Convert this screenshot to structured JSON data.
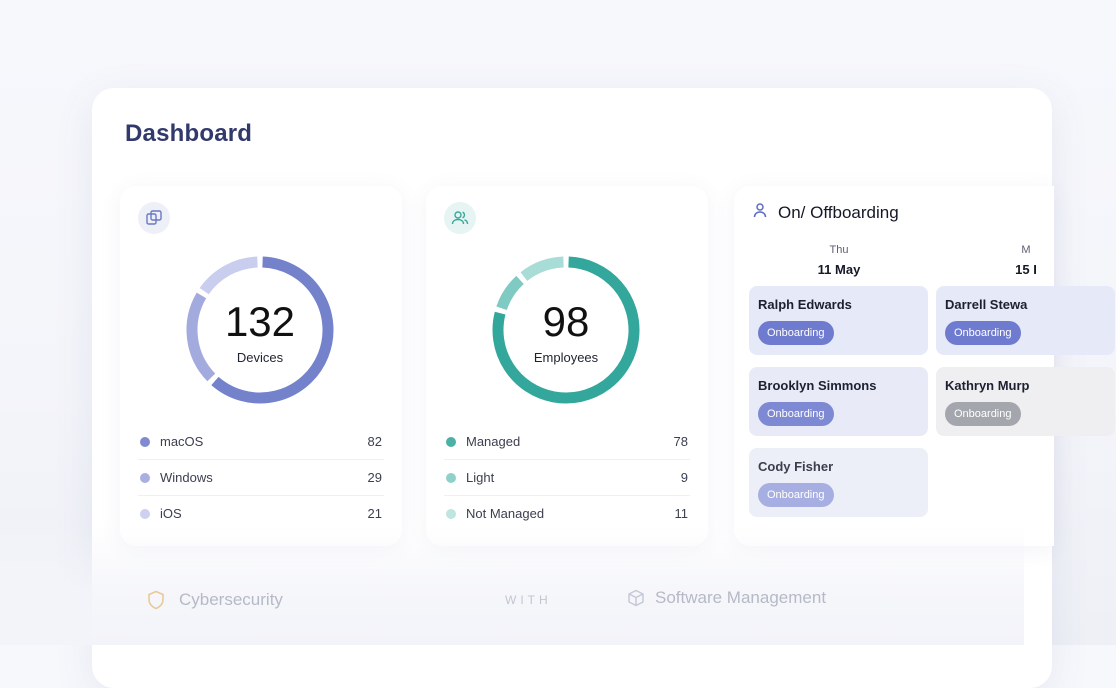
{
  "dashboard": {
    "title": "Dashboard"
  },
  "devices": {
    "icon": "devices-icon",
    "total": "132",
    "label": "Devices",
    "segments": [
      {
        "name": "macOS",
        "value": 82,
        "color": "#7482cc"
      },
      {
        "name": "Windows",
        "value": 29,
        "color": "#a2aade"
      },
      {
        "name": "iOS",
        "value": 21,
        "color": "#c9cdee"
      }
    ],
    "legend": [
      {
        "label": "macOS",
        "value": "82",
        "color": "#7f8ad0"
      },
      {
        "label": "Windows",
        "value": "29",
        "color": "#a8b0e0"
      },
      {
        "label": "iOS",
        "value": "21",
        "color": "#cdd1ef"
      }
    ]
  },
  "employees": {
    "icon": "users-icon",
    "total": "98",
    "label": "Employees",
    "segments": [
      {
        "name": "Managed",
        "value": 78,
        "color": "#34a79c"
      },
      {
        "name": "Light",
        "value": 9,
        "color": "#7fcbc3"
      },
      {
        "name": "Not Managed",
        "value": 11,
        "color": "#a7dcd7"
      }
    ],
    "legend": [
      {
        "label": "Managed",
        "value": "78",
        "color": "#4bb0a6"
      },
      {
        "label": "Light",
        "value": "9",
        "color": "#8fd1ca"
      },
      {
        "label": "Not Managed",
        "value": "11",
        "color": "#bfe5e1"
      }
    ]
  },
  "onboarding": {
    "icon": "user-icon",
    "title": "On/ Offboarding",
    "days": [
      {
        "name": "Thu",
        "date": "11 May"
      },
      {
        "name": "M",
        "date": "15 I"
      }
    ],
    "people": [
      {
        "name": "Ralph Edwards",
        "status": "Onboarding",
        "badge_color": "#6f7bcf",
        "bg": "#e6e9f7"
      },
      {
        "name": "Brooklyn Simmons",
        "status": "Onboarding",
        "badge_color": "#7e89d3",
        "bg": "#e8ebf7"
      },
      {
        "name": "Cody Fisher",
        "status": "Onboarding",
        "badge_color": "#a7afe2",
        "bg": "#edeff8"
      },
      {
        "name": "Darrell Stewa",
        "status": "Onboarding",
        "badge_color": "#6f7bcf",
        "bg": "#e6e9f7"
      },
      {
        "name": "Kathryn Murp",
        "status": "Onboarding",
        "badge_color": "#a4a6ad",
        "bg": "#efeff1"
      }
    ]
  },
  "bottom": {
    "cybersecurity": "Cybersecurity",
    "with_logo": "WITH",
    "software": "Software Management"
  },
  "colors": {
    "title": "#323a6b",
    "devices_icon_bg": "#eef0f8",
    "employees_icon_bg": "#e6f4f3"
  }
}
